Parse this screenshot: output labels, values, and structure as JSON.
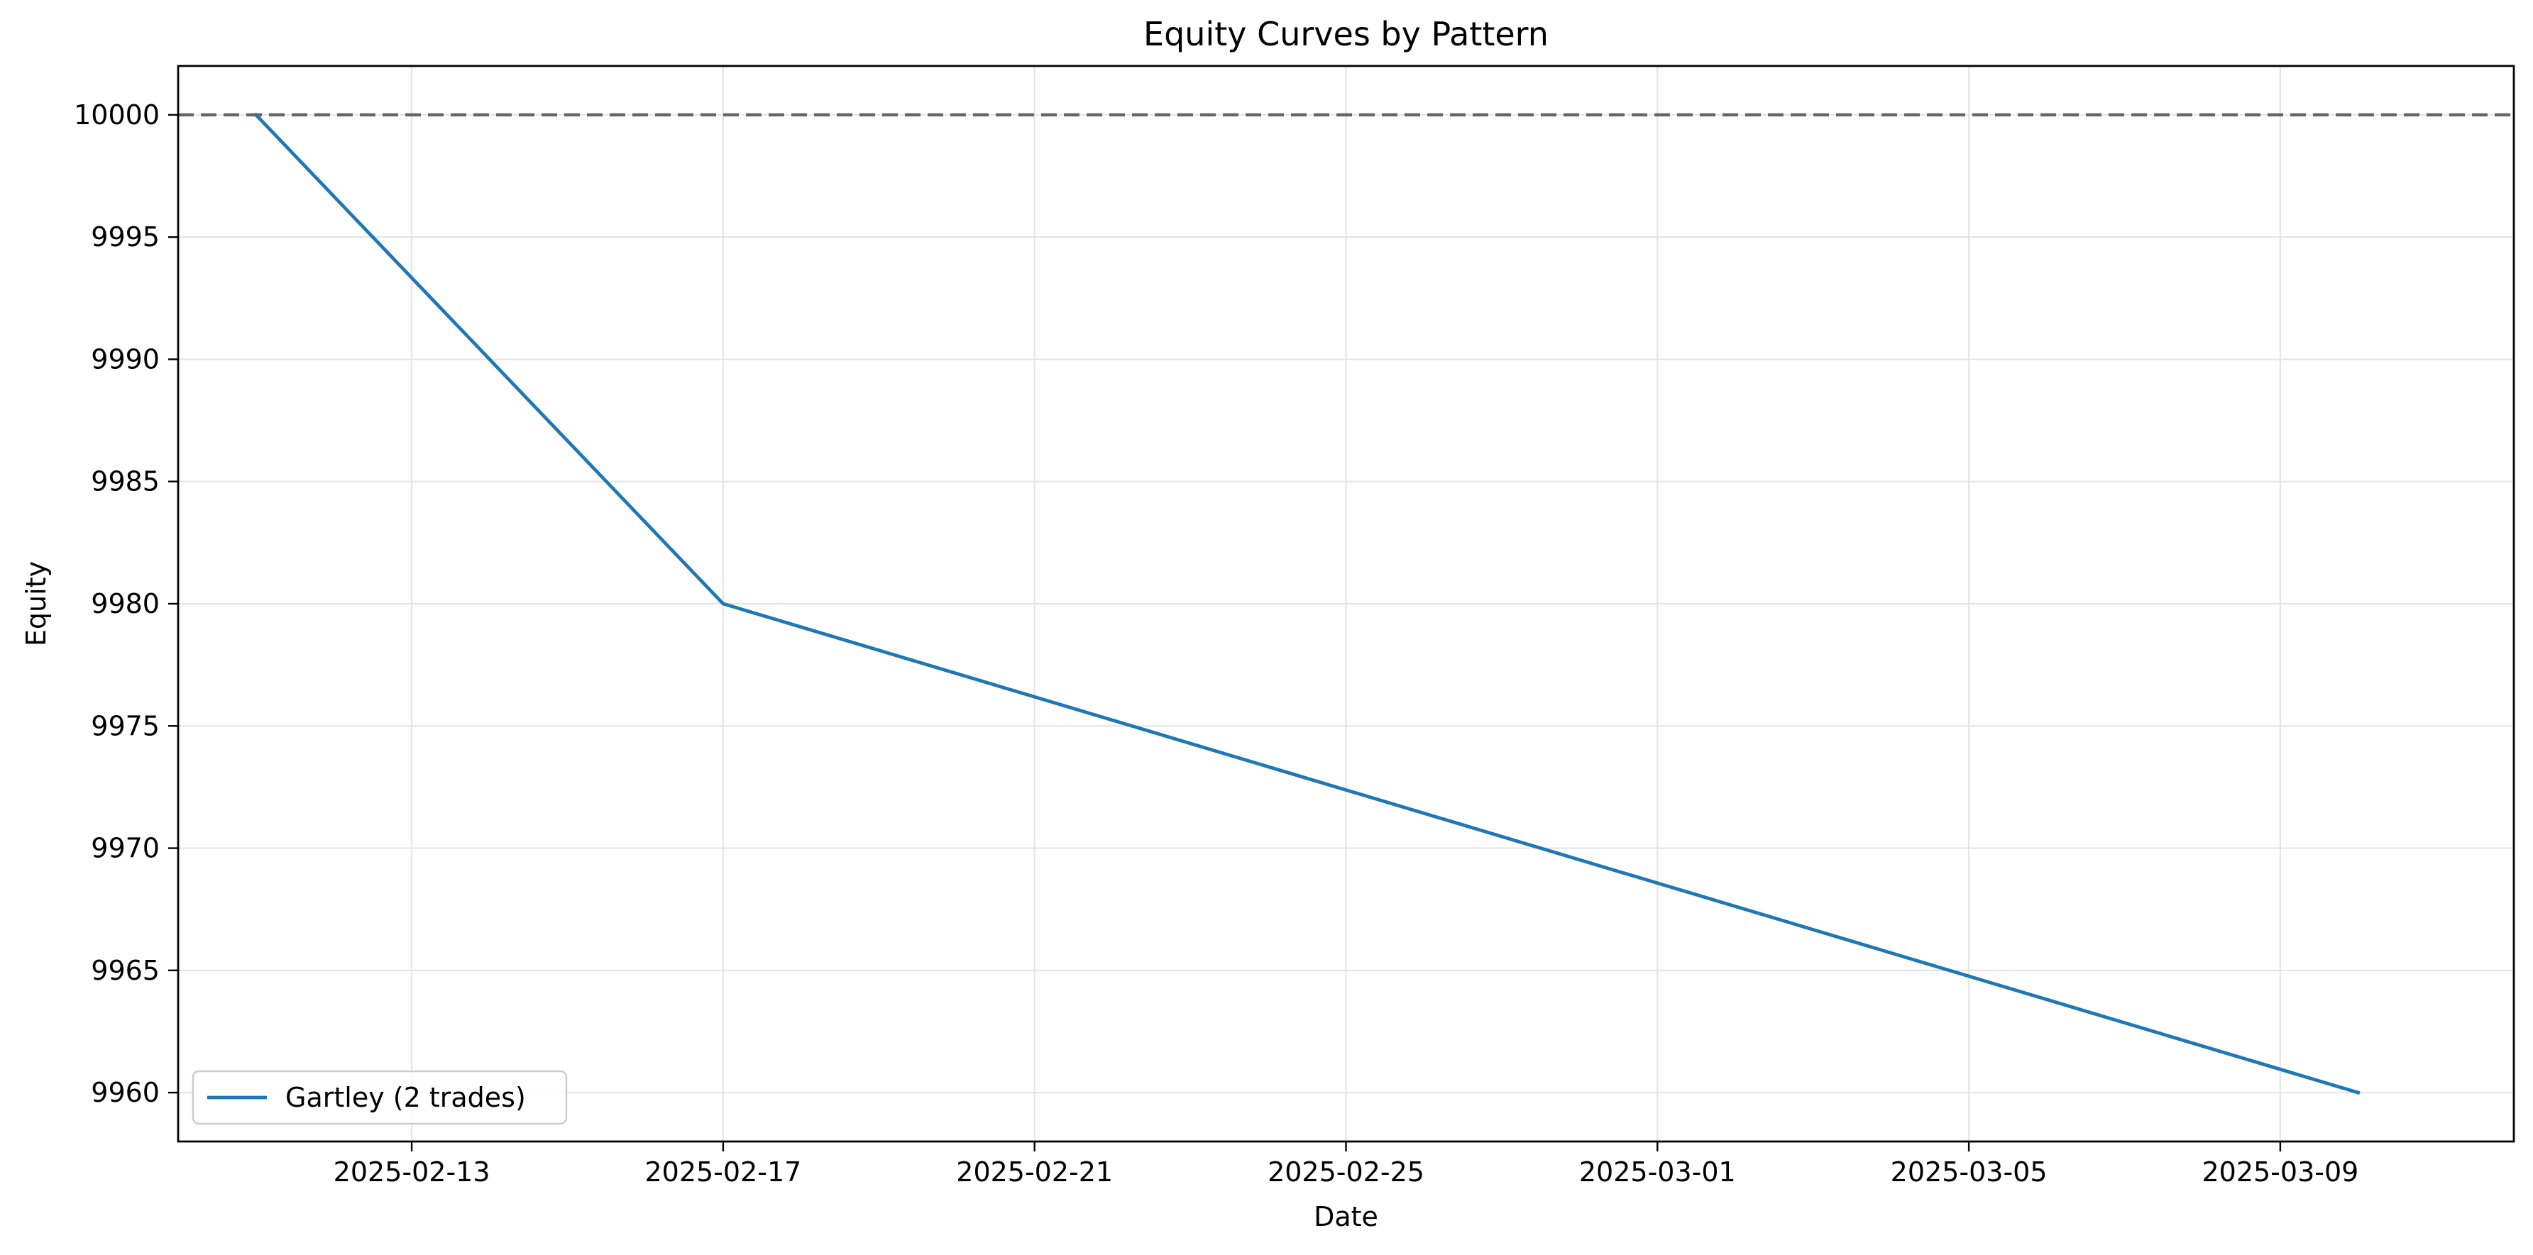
{
  "chart_data": {
    "type": "line",
    "title": "Equity Curves by Pattern",
    "xlabel": "Date",
    "ylabel": "Equity",
    "x_axis_type": "date",
    "xlim": [
      "2025-02-10",
      "2025-03-12"
    ],
    "ylim": [
      9958,
      10002
    ],
    "x_ticks": [
      "2025-02-13",
      "2025-02-17",
      "2025-02-21",
      "2025-02-25",
      "2025-03-01",
      "2025-03-05",
      "2025-03-09"
    ],
    "y_ticks": [
      9960,
      9965,
      9970,
      9975,
      9980,
      9985,
      9990,
      9995,
      10000
    ],
    "grid": true,
    "legend_position": "lower-left",
    "series": [
      {
        "name": "Gartley (2 trades)",
        "color": "#1f77b4",
        "x": [
          "2025-02-11",
          "2025-02-17",
          "2025-03-10"
        ],
        "y": [
          10000,
          9980,
          9960
        ]
      }
    ],
    "reference_line": {
      "y": 10000,
      "style": "dashed",
      "color": "#666666"
    }
  }
}
